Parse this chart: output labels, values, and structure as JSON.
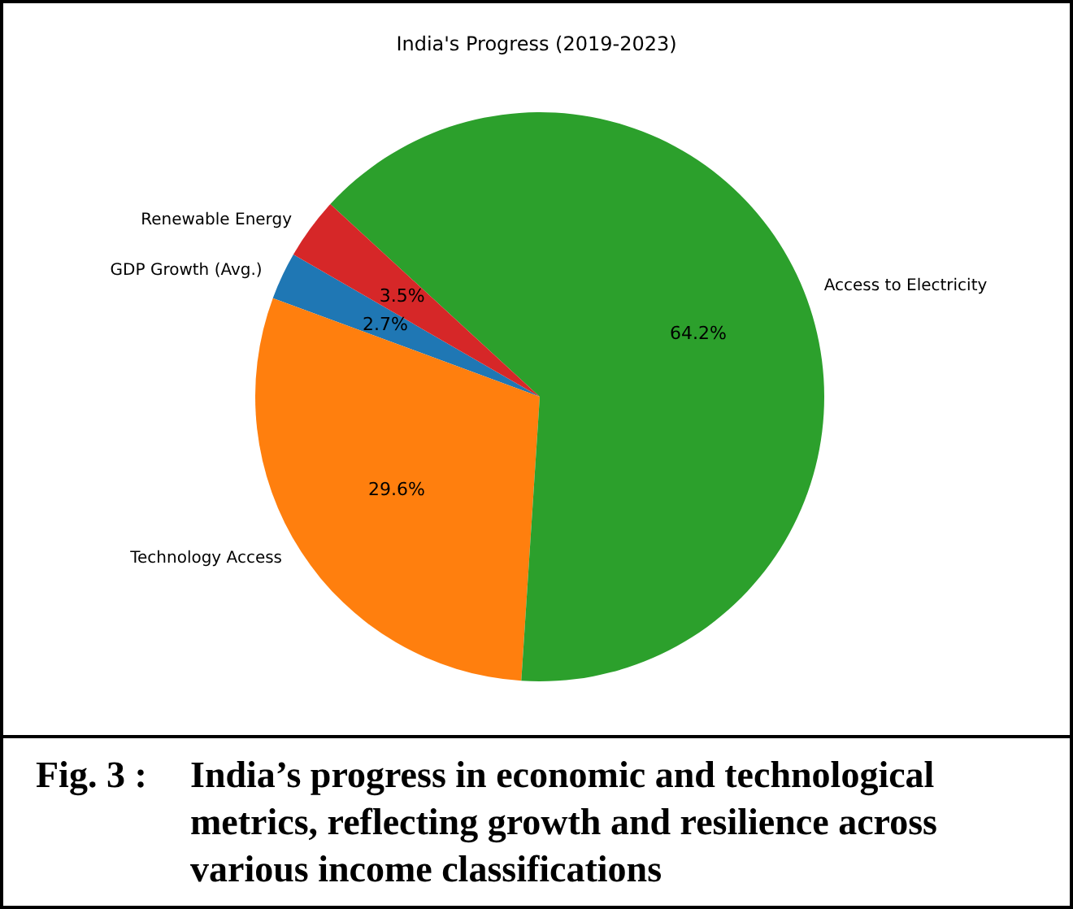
{
  "chart_data": {
    "type": "pie",
    "title": "India's Progress (2019-2023)",
    "categories": [
      "GDP Growth (Avg.)",
      "Technology Access",
      "Access to Electricity",
      "Renewable Energy"
    ],
    "values": [
      2.7,
      29.6,
      64.2,
      3.5
    ],
    "colors": [
      "#1f77b4",
      "#ff7f0e",
      "#2ca02c",
      "#d62728"
    ],
    "value_labels": [
      "2.7%",
      "29.6%",
      "64.2%",
      "3.5%"
    ],
    "annotations": [
      "Fig. 3 :",
      "India’s progress in economic and technological metrics, reflecting growth and resilience across various income classifications"
    ]
  }
}
